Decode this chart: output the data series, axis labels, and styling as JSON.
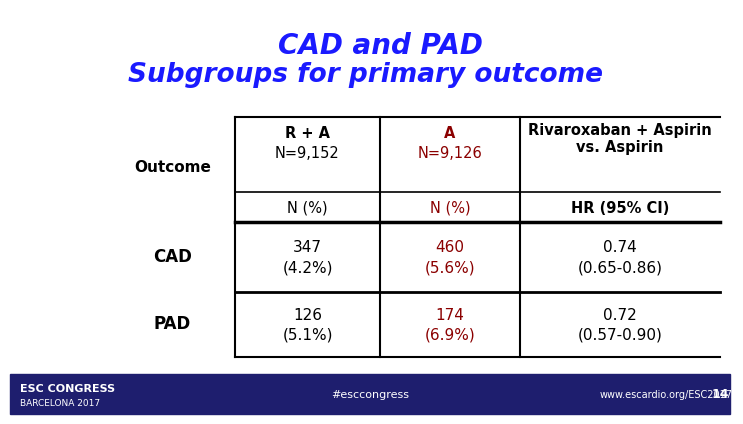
{
  "title1": "CAD and PAD",
  "title2": "Subgroups for primary outcome",
  "title1_color": "#1a1aff",
  "title2_color": "#1a1aff",
  "col1_header_line1": "R + A",
  "col1_header_line2": "N=9,152",
  "col1_header_line3": "N (%)",
  "col2_header_line1": "A",
  "col2_header_line2": "N=9,126",
  "col2_header_line3": "N (%)",
  "col3_header_line1": "Rivaroxaban + Aspirin",
  "col3_header_line2": "vs. Aspirin",
  "col3_header_line3": "HR (95% CI)",
  "row_label": "Outcome",
  "rows": [
    {
      "label": "CAD",
      "col1_v1": "347",
      "col1_v2": "(4.2%)",
      "col2_v1": "460",
      "col2_v2": "(5.6%)",
      "col3_v1": "0.74",
      "col3_v2": "(0.65-0.86)"
    },
    {
      "label": "PAD",
      "col1_v1": "126",
      "col1_v2": "(5.1%)",
      "col2_v1": "174",
      "col2_v2": "(6.9%)",
      "col3_v1": "0.72",
      "col3_v2": "(0.57-0.90)"
    }
  ],
  "col1_color": "#000000",
  "col2_color": "#8b0000",
  "col3_color": "#000000",
  "header_col2_color": "#8b0000",
  "bg_color": "#ffffff",
  "footer_bg": "#1e1e6e",
  "footer_text_color": "#ffffff",
  "slide_number": "14",
  "esc_line1": "ESC CONGRESS",
  "esc_line2": "BARCELONA 2017",
  "hashtag": "#esccongress",
  "website": "www.escardio.org/ESC2017"
}
